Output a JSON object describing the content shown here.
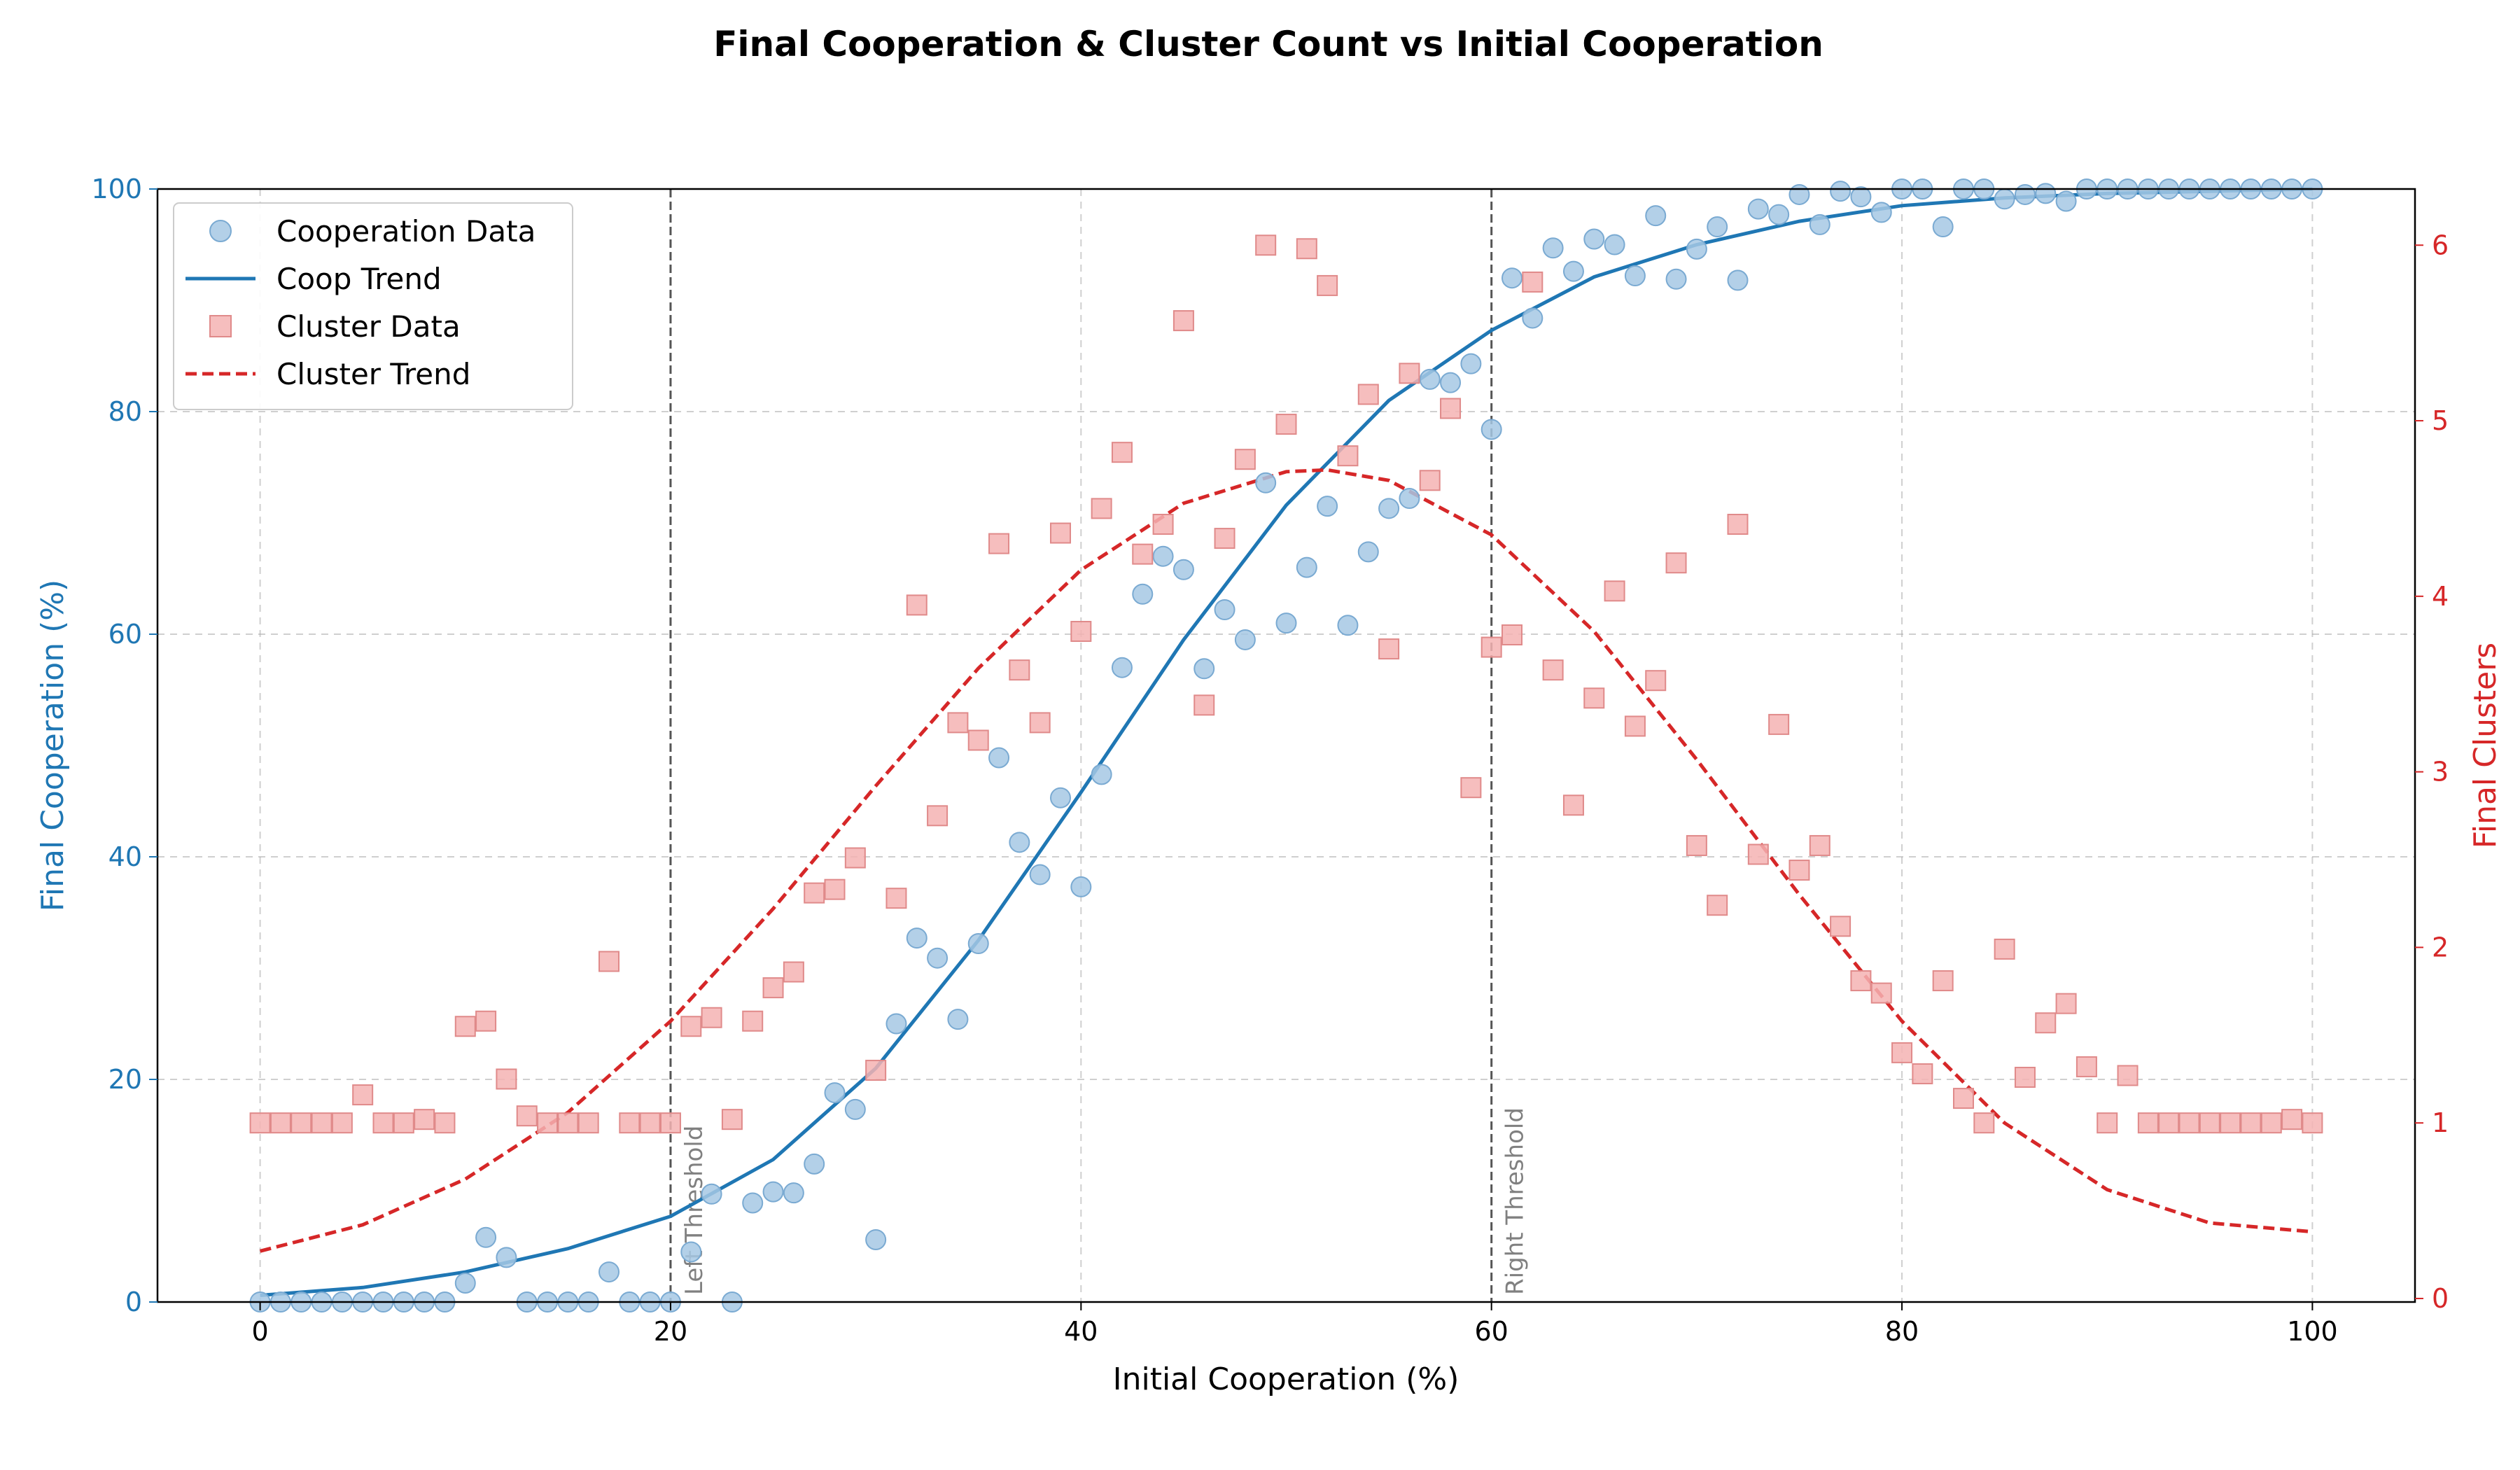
{
  "chart_data": {
    "type": "scatter",
    "title": "Final Cooperation & Cluster Count vs Initial Cooperation",
    "xlabel": "Initial Cooperation (%)",
    "ylabel": "Final Cooperation (%)",
    "y2label": "Final Clusters",
    "xlim": [
      -5,
      105
    ],
    "ylim": [
      0,
      100
    ],
    "y2lim": [
      -0.02,
      6.32
    ],
    "xticks": [
      0,
      20,
      40,
      60,
      80,
      100
    ],
    "yticks": [
      0,
      20,
      40,
      60,
      80,
      100
    ],
    "y2ticks": [
      0,
      1,
      2,
      3,
      4,
      5,
      6
    ],
    "grid": true,
    "legend_position": "top-left",
    "legend": [
      "Cooperation Data",
      "Coop Trend",
      "Cluster Data",
      "Cluster Trend"
    ],
    "colors": {
      "coop": "#1f77b4",
      "coop_marker": "#a6c8e4",
      "cluster": "#d62728",
      "cluster_marker": "#f4b3b3",
      "threshold": "#555555"
    },
    "thresholds": [
      {
        "x": 20,
        "label": "Left Threshold"
      },
      {
        "x": 60,
        "label": "Right Threshold"
      }
    ],
    "x": [
      0,
      1,
      2,
      3,
      4,
      5,
      6,
      7,
      8,
      9,
      10,
      11,
      12,
      13,
      14,
      15,
      16,
      17,
      18,
      19,
      20,
      21,
      22,
      23,
      24,
      25,
      26,
      27,
      28,
      29,
      30,
      31,
      32,
      33,
      34,
      35,
      36,
      37,
      38,
      39,
      40,
      41,
      42,
      43,
      44,
      45,
      46,
      47,
      48,
      49,
      50,
      51,
      52,
      53,
      54,
      55,
      56,
      57,
      58,
      59,
      60,
      61,
      62,
      63,
      64,
      65,
      66,
      67,
      68,
      69,
      70,
      71,
      72,
      73,
      74,
      75,
      76,
      77,
      78,
      79,
      80,
      81,
      82,
      83,
      84,
      85,
      86,
      87,
      88,
      89,
      90,
      91,
      92,
      93,
      94,
      95,
      96,
      97,
      98,
      99,
      100
    ],
    "series": [
      {
        "name": "Cooperation Data",
        "axis": "left",
        "marker": "circle",
        "values": [
          0,
          0,
          0,
          0,
          0,
          0,
          0,
          0,
          0,
          0,
          1.7,
          5.8,
          4.0,
          0,
          0,
          0,
          0,
          2.7,
          0,
          0,
          0,
          4.5,
          9.7,
          0,
          8.9,
          9.9,
          9.8,
          12.4,
          18.8,
          17.3,
          5.6,
          25.0,
          32.7,
          30.9,
          25.4,
          32.2,
          48.9,
          41.3,
          38.4,
          45.3,
          37.3,
          47.4,
          57.0,
          63.6,
          67.0,
          65.8,
          56.9,
          62.2,
          59.5,
          73.6,
          61.0,
          66.0,
          71.5,
          60.8,
          67.4,
          71.3,
          72.2,
          82.9,
          82.6,
          84.3,
          78.4,
          92.0,
          88.4,
          94.7,
          92.6,
          95.5,
          95.0,
          92.2,
          97.6,
          91.9,
          94.6,
          96.6,
          91.8,
          98.2,
          97.7,
          99.5,
          96.8,
          99.8,
          99.3,
          97.9,
          100,
          100,
          96.6,
          100,
          100,
          99.1,
          99.5,
          99.6,
          98.9,
          100,
          100,
          100,
          100,
          100,
          100,
          100,
          100,
          100,
          100,
          100,
          100
        ]
      },
      {
        "name": "Cluster Data",
        "axis": "right",
        "marker": "square",
        "values": [
          1,
          1,
          1,
          1,
          1,
          1.16,
          1,
          1,
          1.02,
          1,
          1.55,
          1.58,
          1.25,
          1.04,
          1,
          1,
          1,
          1.92,
          1,
          1,
          1,
          1.55,
          1.6,
          1.02,
          1.58,
          1.77,
          1.86,
          2.31,
          2.33,
          2.51,
          1.3,
          2.28,
          3.95,
          2.75,
          3.28,
          3.18,
          4.3,
          3.58,
          3.28,
          4.36,
          3.8,
          4.5,
          4.82,
          4.24,
          4.41,
          5.57,
          3.38,
          4.33,
          4.78,
          6.0,
          4.98,
          5.98,
          5.77,
          4.8,
          5.15,
          3.7,
          5.27,
          4.66,
          5.07,
          2.91,
          3.71,
          3.78,
          5.79,
          3.58,
          2.81,
          3.42,
          4.03,
          3.26,
          3.52,
          4.19,
          2.58,
          2.24,
          4.41,
          2.53,
          3.27,
          2.44,
          2.58,
          2.12,
          1.81,
          1.74,
          1.4,
          1.28,
          1.81,
          1.14,
          1,
          1.99,
          1.26,
          1.57,
          1.68,
          1.32,
          1,
          1.27,
          1,
          1,
          1,
          1,
          1,
          1,
          1,
          1.02,
          1
        ]
      },
      {
        "name": "Coop Trend",
        "axis": "left",
        "style": "solid",
        "x": [
          0,
          5,
          10,
          15,
          20,
          25,
          30,
          35,
          40,
          45,
          50,
          55,
          60,
          65,
          70,
          75,
          80,
          85,
          90,
          95,
          100
        ],
        "values": [
          0.6,
          1.3,
          2.7,
          4.8,
          7.7,
          12.8,
          21.0,
          32.5,
          45.8,
          59.5,
          71.6,
          81.0,
          87.3,
          92.1,
          95.0,
          97.1,
          98.5,
          99.2,
          99.6,
          99.8,
          100
        ]
      },
      {
        "name": "Cluster Trend",
        "axis": "right",
        "style": "dashed",
        "x": [
          0,
          5,
          10,
          15,
          20,
          25,
          30,
          35,
          40,
          45,
          50,
          52,
          55,
          60,
          65,
          70,
          75,
          80,
          85,
          90,
          95,
          100
        ],
        "values": [
          0.27,
          0.42,
          0.68,
          1.06,
          1.58,
          2.22,
          2.92,
          3.59,
          4.15,
          4.53,
          4.71,
          4.72,
          4.66,
          4.35,
          3.8,
          3.07,
          2.3,
          1.58,
          1.0,
          0.62,
          0.43,
          0.38
        ]
      }
    ]
  }
}
